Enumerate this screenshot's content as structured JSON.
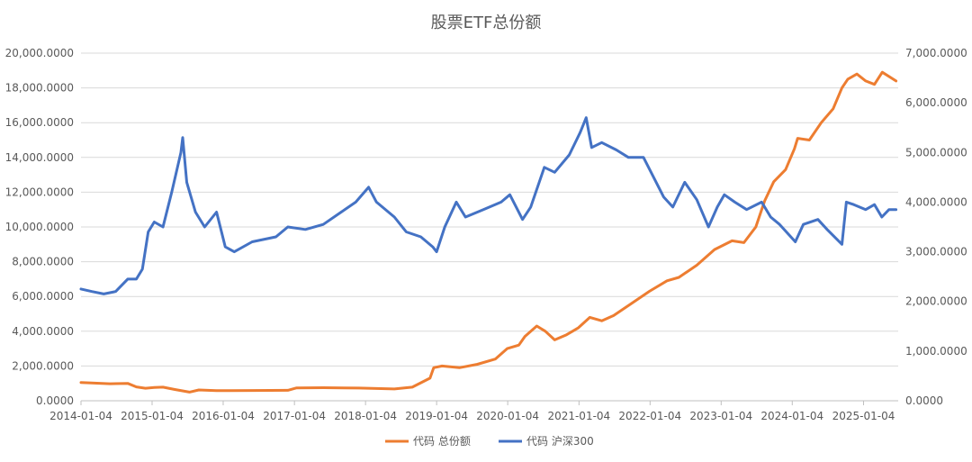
{
  "chart_data": {
    "type": "line",
    "title": "股票ETF总份额",
    "xlabel": "",
    "ylabel": "",
    "y_left": {
      "ylim": [
        0,
        20000
      ],
      "tick_values": [
        0,
        2000,
        4000,
        6000,
        8000,
        10000,
        12000,
        14000,
        16000,
        18000,
        20000
      ],
      "tick_labels": [
        "0.0000",
        "2,000.0000",
        "4,000.0000",
        "6,000.0000",
        "8,000.0000",
        "10,000.0000",
        "12,000.0000",
        "14,000.0000",
        "16,000.0000",
        "18,000.0000",
        "20,000.0000"
      ]
    },
    "y_right": {
      "ylim": [
        0,
        7000
      ],
      "tick_values": [
        0,
        1000,
        2000,
        3000,
        4000,
        5000,
        6000,
        7000
      ],
      "tick_labels": [
        "0.0000",
        "1,000.0000",
        "2,000.0000",
        "3,000.0000",
        "4,000.0000",
        "5,000.0000",
        "6,000.0000",
        "7,000.0000"
      ]
    },
    "x_axis": {
      "range": [
        "2014-01-04",
        "2025-07-01"
      ],
      "tick_labels": [
        "2014-01-04",
        "2015-01-04",
        "2016-01-04",
        "2017-01-04",
        "2018-01-04",
        "2019-01-04",
        "2020-01-04",
        "2021-01-04",
        "2022-01-04",
        "2023-01-04",
        "2024-01-04",
        "2025-01-04"
      ]
    },
    "grid": true,
    "legend": "bottom",
    "series": [
      {
        "name": "代码 总份额",
        "axis": "left",
        "color": "#ED7D31",
        "points": [
          [
            "2014-01-04",
            1050
          ],
          [
            "2014-03-01",
            1020
          ],
          [
            "2014-06-01",
            980
          ],
          [
            "2014-09-01",
            1000
          ],
          [
            "2014-10-15",
            800
          ],
          [
            "2014-12-01",
            720
          ],
          [
            "2015-01-15",
            760
          ],
          [
            "2015-03-01",
            780
          ],
          [
            "2015-05-01",
            650
          ],
          [
            "2015-07-15",
            500
          ],
          [
            "2015-09-01",
            620
          ],
          [
            "2015-12-01",
            580
          ],
          [
            "2016-06-01",
            590
          ],
          [
            "2016-12-01",
            600
          ],
          [
            "2017-01-15",
            740
          ],
          [
            "2017-06-01",
            750
          ],
          [
            "2017-12-01",
            730
          ],
          [
            "2018-06-01",
            680
          ],
          [
            "2018-09-01",
            780
          ],
          [
            "2018-12-01",
            1300
          ],
          [
            "2018-12-20",
            1900
          ],
          [
            "2019-02-01",
            2000
          ],
          [
            "2019-05-01",
            1900
          ],
          [
            "2019-08-01",
            2100
          ],
          [
            "2019-11-01",
            2400
          ],
          [
            "2020-01-01",
            3000
          ],
          [
            "2020-03-01",
            3200
          ],
          [
            "2020-04-01",
            3700
          ],
          [
            "2020-06-01",
            4300
          ],
          [
            "2020-07-15",
            4000
          ],
          [
            "2020-09-01",
            3500
          ],
          [
            "2020-11-01",
            3800
          ],
          [
            "2021-01-01",
            4200
          ],
          [
            "2021-03-01",
            4800
          ],
          [
            "2021-05-01",
            4600
          ],
          [
            "2021-07-01",
            4900
          ],
          [
            "2021-10-01",
            5600
          ],
          [
            "2022-01-01",
            6300
          ],
          [
            "2022-04-01",
            6900
          ],
          [
            "2022-06-01",
            7100
          ],
          [
            "2022-09-01",
            7800
          ],
          [
            "2022-12-01",
            8700
          ],
          [
            "2023-03-01",
            9200
          ],
          [
            "2023-05-01",
            9100
          ],
          [
            "2023-07-01",
            10000
          ],
          [
            "2023-08-15",
            11500
          ],
          [
            "2023-10-01",
            12600
          ],
          [
            "2023-12-01",
            13300
          ],
          [
            "2024-01-15",
            14500
          ],
          [
            "2024-02-01",
            15100
          ],
          [
            "2024-04-01",
            15000
          ],
          [
            "2024-06-01",
            16000
          ],
          [
            "2024-08-01",
            16800
          ],
          [
            "2024-09-15",
            18000
          ],
          [
            "2024-10-15",
            18500
          ],
          [
            "2024-12-01",
            18800
          ],
          [
            "2025-01-15",
            18400
          ],
          [
            "2025-03-01",
            18200
          ],
          [
            "2025-04-10",
            18900
          ],
          [
            "2025-06-20",
            18400
          ]
        ]
      },
      {
        "name": "代码 沪深300",
        "axis": "right",
        "color": "#4472C4",
        "points": [
          [
            "2014-01-04",
            2250
          ],
          [
            "2014-03-01",
            2200
          ],
          [
            "2014-05-01",
            2150
          ],
          [
            "2014-07-01",
            2200
          ],
          [
            "2014-09-01",
            2450
          ],
          [
            "2014-10-15",
            2450
          ],
          [
            "2014-11-15",
            2650
          ],
          [
            "2014-12-15",
            3400
          ],
          [
            "2015-01-15",
            3600
          ],
          [
            "2015-03-01",
            3500
          ],
          [
            "2015-04-15",
            4200
          ],
          [
            "2015-06-01",
            5000
          ],
          [
            "2015-06-10",
            5300
          ],
          [
            "2015-07-01",
            4400
          ],
          [
            "2015-08-15",
            3800
          ],
          [
            "2015-10-01",
            3500
          ],
          [
            "2015-12-01",
            3800
          ],
          [
            "2016-01-15",
            3100
          ],
          [
            "2016-03-01",
            3000
          ],
          [
            "2016-06-01",
            3200
          ],
          [
            "2016-10-01",
            3300
          ],
          [
            "2016-12-01",
            3500
          ],
          [
            "2017-03-01",
            3450
          ],
          [
            "2017-06-01",
            3550
          ],
          [
            "2017-09-01",
            3800
          ],
          [
            "2017-11-15",
            4000
          ],
          [
            "2018-01-20",
            4300
          ],
          [
            "2018-03-01",
            4000
          ],
          [
            "2018-06-01",
            3700
          ],
          [
            "2018-08-01",
            3400
          ],
          [
            "2018-10-15",
            3300
          ],
          [
            "2018-12-15",
            3100
          ],
          [
            "2019-01-04",
            3000
          ],
          [
            "2019-02-15",
            3500
          ],
          [
            "2019-04-15",
            4000
          ],
          [
            "2019-06-01",
            3700
          ],
          [
            "2019-09-01",
            3850
          ],
          [
            "2019-12-01",
            4000
          ],
          [
            "2020-01-15",
            4150
          ],
          [
            "2020-03-20",
            3650
          ],
          [
            "2020-05-01",
            3900
          ],
          [
            "2020-07-10",
            4700
          ],
          [
            "2020-09-01",
            4600
          ],
          [
            "2020-11-15",
            4950
          ],
          [
            "2021-01-10",
            5400
          ],
          [
            "2021-02-10",
            5700
          ],
          [
            "2021-03-10",
            5100
          ],
          [
            "2021-05-01",
            5200
          ],
          [
            "2021-07-15",
            5050
          ],
          [
            "2021-09-15",
            4900
          ],
          [
            "2021-12-01",
            4900
          ],
          [
            "2022-03-15",
            4100
          ],
          [
            "2022-05-01",
            3900
          ],
          [
            "2022-07-01",
            4400
          ],
          [
            "2022-09-01",
            4050
          ],
          [
            "2022-10-31",
            3500
          ],
          [
            "2022-12-15",
            3900
          ],
          [
            "2023-01-20",
            4150
          ],
          [
            "2023-03-15",
            4000
          ],
          [
            "2023-05-15",
            3850
          ],
          [
            "2023-07-31",
            4000
          ],
          [
            "2023-09-15",
            3700
          ],
          [
            "2023-10-31",
            3550
          ],
          [
            "2024-01-20",
            3200
          ],
          [
            "2024-03-01",
            3550
          ],
          [
            "2024-05-15",
            3650
          ],
          [
            "2024-07-01",
            3450
          ],
          [
            "2024-09-15",
            3150
          ],
          [
            "2024-10-08",
            4000
          ],
          [
            "2024-11-15",
            3950
          ],
          [
            "2025-01-15",
            3850
          ],
          [
            "2025-03-01",
            3950
          ],
          [
            "2025-04-08",
            3700
          ],
          [
            "2025-05-15",
            3850
          ],
          [
            "2025-06-20",
            3850
          ]
        ]
      }
    ]
  }
}
